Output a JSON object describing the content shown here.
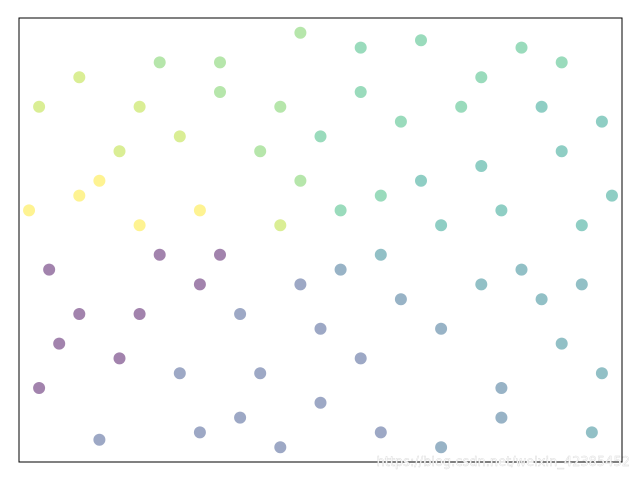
{
  "chart_data": {
    "type": "scatter",
    "xlim": [
      -1.5,
      1.5
    ],
    "ylim": [
      -1.5,
      1.5
    ],
    "xticks": [],
    "yticks": [],
    "alpha": 0.5,
    "x": [
      -1.2,
      -0.9,
      -0.5,
      0.2,
      0.8,
      1.2,
      1.3,
      1.1,
      0.9,
      0.3,
      -0.4,
      -1.0,
      -1.35,
      -0.2,
      0.1,
      0.3,
      -0.1,
      0.5,
      -0.6,
      -0.4,
      0.6,
      0.0,
      -0.8,
      0.9,
      -0.3,
      0.2,
      1.0,
      -1.0,
      -0.7,
      0.7,
      1.4,
      1.4,
      -1.4,
      -1.4,
      -1.1,
      0.6,
      -0.1,
      0.5,
      1.0,
      1.45,
      1.2,
      -1.2,
      -1.45,
      -0.9,
      -0.5,
      -0.6,
      0.4,
      0.8,
      0.3,
      -0.2,
      -0.7,
      -1.1,
      0.0,
      0.4,
      0.8,
      -0.3,
      -0.9,
      1.1,
      0.2,
      -0.5,
      -0.8,
      0.9,
      -0.2,
      -1.3,
      1.3,
      0.6,
      -0.1,
      0.1,
      -1.2,
      1.2,
      0.0,
      -0.6,
      1.35
    ],
    "values": [
      0.3,
      0.9,
      1.2,
      1.3,
      1.1,
      0.6,
      0.1,
      -0.4,
      -1.0,
      -1.3,
      -1.2,
      -0.8,
      -0.2,
      0.1,
      0.2,
      -0.1,
      -0.3,
      0.4,
      0.2,
      -0.5,
      -0.6,
      0.7,
      -0.1,
      0.2,
      0.6,
      -0.8,
      -0.2,
      0.6,
      -0.9,
      0.9,
      0.8,
      -0.9,
      0.9,
      -1.0,
      -1.35,
      -1.4,
      1.4,
      1.35,
      1.3,
      0.3,
      -0.7,
      -0.5,
      0.2,
      0.1,
      -0.1,
      -0.3,
      0.8,
      0.5,
      0.3,
      0.9,
      0.7,
      0.4,
      -0.6,
      -0.4,
      -0.3,
      -0.9,
      -0.5,
      0.9,
      1.0,
      1.0,
      1.2,
      -1.2,
      -1.4,
      -0.7,
      -0.3,
      0.1,
      0.4,
      -0.2,
      1.1,
      1.2,
      -1.1,
      -1.3,
      -1.3
    ],
    "colors": [
      "#fde725",
      "#b5de2b",
      "#6ece58",
      "#35b779",
      "#35b779",
      "#1f9e89",
      "#1f9e89",
      "#26828e",
      "#31688e",
      "#3b528b",
      "#3b528b",
      "#46085c",
      "#46085c",
      "#b5de2b",
      "#35b779",
      "#26828e",
      "#3b528b",
      "#1f9e89",
      "#fde725",
      "#3b528b",
      "#31688e",
      "#35b779",
      "#46085c",
      "#1f9e89",
      "#6ece58",
      "#3b528b",
      "#26828e",
      "#b5de2b",
      "#3b528b",
      "#35b779",
      "#1f9e89",
      "#26828e",
      "#b5de2b",
      "#46085c",
      "#3b528b",
      "#31688e",
      "#6ece58",
      "#35b779",
      "#35b779",
      "#1f9e89",
      "#26828e",
      "#46085c",
      "#fde725",
      "#fde725",
      "#46085c",
      "#46085c",
      "#35b779",
      "#1f9e89",
      "#35b779",
      "#6ece58",
      "#b5de2b",
      "#fde725",
      "#3b528b",
      "#31688e",
      "#26828e",
      "#3b528b",
      "#46085c",
      "#1f9e89",
      "#35b779",
      "#6ece58",
      "#6ece58",
      "#31688e",
      "#3b528b",
      "#46085c",
      "#26828e",
      "#1f9e89",
      "#6ece58",
      "#31688e",
      "#b5de2b",
      "#35b779",
      "#3b528b",
      "#3b528b",
      "#26828e"
    ],
    "watermark": "https://blog.csdn.net/weixin_42385452"
  }
}
